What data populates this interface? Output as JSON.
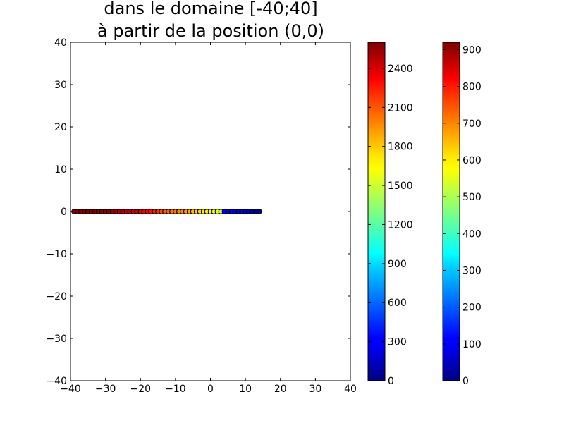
{
  "chart_data": {
    "type": "scatter",
    "title_lines": [
      "dans le domaine [-40;40]",
      "à partir de la position (0,0)"
    ],
    "xlabel": "",
    "ylabel": "",
    "xlim": [
      -40,
      40
    ],
    "ylim": [
      -40,
      40
    ],
    "xticks": [
      "−40",
      "−30",
      "−20",
      "−10",
      "0",
      "10",
      "20",
      "30",
      "40"
    ],
    "yticks": [
      "40",
      "30",
      "20",
      "10",
      "0",
      "−10",
      "−20",
      "−30",
      "−40"
    ],
    "grid": false,
    "colormap": "jet",
    "points": {
      "x": [
        14,
        13,
        12,
        11,
        10,
        9,
        8,
        7,
        6,
        5,
        4,
        3,
        2,
        1,
        0,
        -1,
        -2,
        -3,
        -4,
        -5,
        -6,
        -7,
        -8,
        -9,
        -10,
        -11,
        -12,
        -13,
        -14,
        -15,
        -16,
        -17,
        -18,
        -19,
        -20,
        -21,
        -22,
        -23,
        -24,
        -25,
        -26,
        -27,
        -28,
        -29,
        -30,
        -31,
        -32,
        -33,
        -34,
        -35,
        -36,
        -37,
        -38,
        -39
      ],
      "y": [
        0,
        0,
        0,
        0,
        0,
        0,
        0,
        0,
        0,
        0,
        0,
        0,
        0,
        0,
        0,
        0,
        0,
        0,
        0,
        0,
        0,
        0,
        0,
        0,
        0,
        0,
        0,
        0,
        0,
        0,
        0,
        0,
        0,
        0,
        0,
        0,
        0,
        0,
        0,
        0,
        0,
        0,
        0,
        0,
        0,
        0,
        0,
        0,
        0,
        0,
        0,
        0,
        0,
        0
      ],
      "color_value": [
        50,
        80,
        110,
        150,
        180,
        210,
        240,
        270,
        290,
        310,
        330,
        1500,
        1550,
        1580,
        1620,
        1650,
        1680,
        1720,
        1760,
        1790,
        1850,
        1880,
        1920,
        1950,
        1980,
        2000,
        2020,
        2060,
        2100,
        2150,
        2200,
        2250,
        2300,
        2330,
        2360,
        2400,
        2420,
        2440,
        2460,
        2480,
        2500,
        2520,
        2540,
        2560,
        2570,
        2580,
        2590,
        2600,
        2600,
        2600,
        2600,
        2600,
        2600,
        2600
      ]
    },
    "colorbars": [
      {
        "min": 0,
        "max": 2600,
        "ticks": [
          0,
          300,
          600,
          900,
          1200,
          1500,
          1800,
          2100,
          2400
        ]
      },
      {
        "min": 0,
        "max": 920,
        "ticks": [
          0,
          100,
          200,
          300,
          400,
          500,
          600,
          700,
          800,
          900
        ]
      }
    ]
  }
}
